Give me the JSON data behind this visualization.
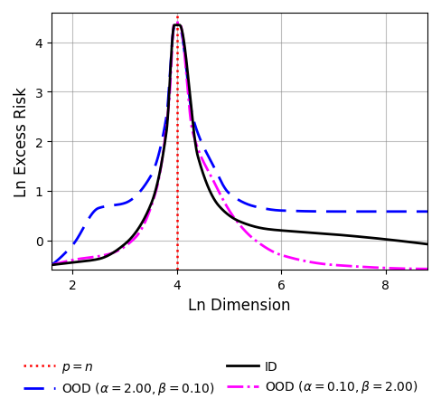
{
  "title": "",
  "xlabel": "Ln Dimension",
  "ylabel": "Ln Excess Risk",
  "xlim": [
    1.6,
    8.8
  ],
  "ylim": [
    -0.6,
    4.6
  ],
  "xticks": [
    2,
    4,
    6,
    8
  ],
  "yticks": [
    0,
    1,
    2,
    3,
    4
  ],
  "vline_x": 4.0,
  "vline_color": "red",
  "id_color": "black",
  "ood1_color": "blue",
  "ood2_color": "magenta",
  "alpha1": 2.0,
  "beta1": 0.1,
  "alpha2": 0.1,
  "beta2": 2.0,
  "figsize": [
    4.88,
    4.52
  ],
  "dpi": 100,
  "ln_n": 4.0
}
